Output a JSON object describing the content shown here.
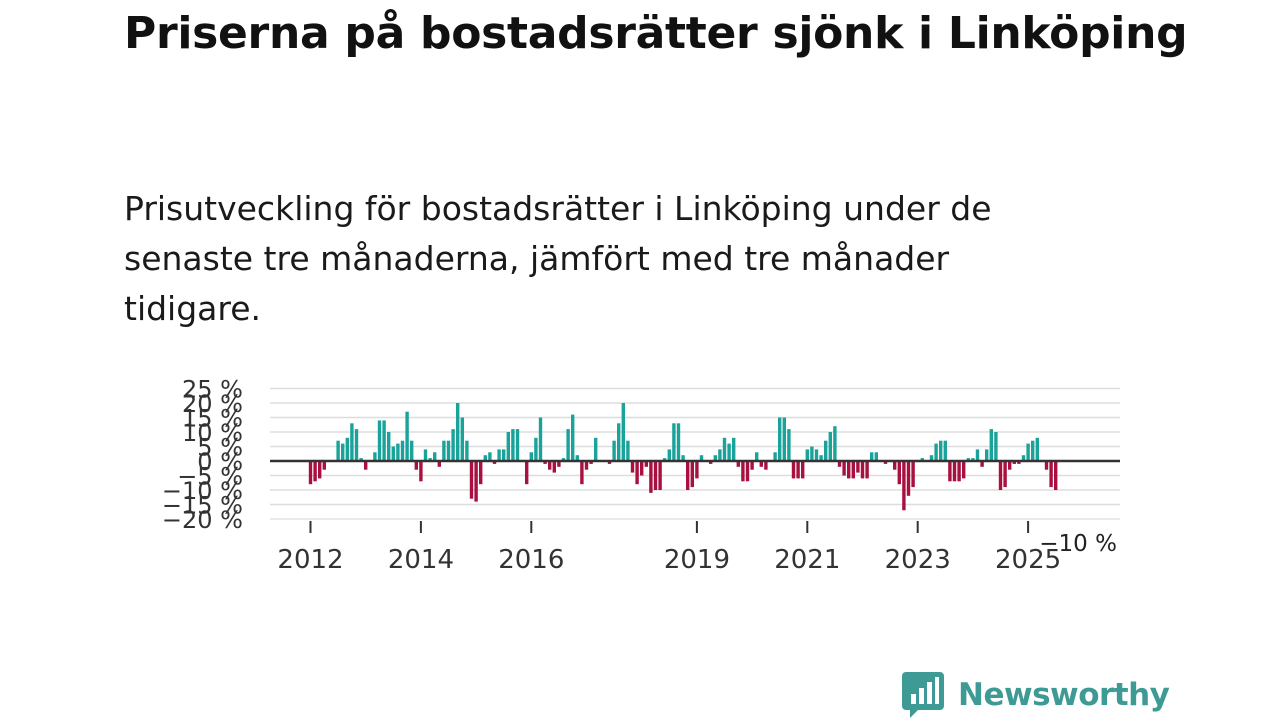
{
  "header": {
    "title": "Priserna på bostadsrätter sjönk i Linköping",
    "subtitle": "Prisutveckling för bostadsrätter i Linköping under de senaste tre månaderna, jämfört med tre månader tidigare."
  },
  "colors": {
    "positive": "#1aa39a",
    "negative": "#a8103f",
    "zero_line": "#333333",
    "grid": "#dddddd",
    "brand": "#3d9a94"
  },
  "chart_data": {
    "type": "bar",
    "title": "Priserna på bostadsrätter sjönk i Linköping",
    "xlabel": "",
    "ylabel": "",
    "ylim": [
      -20,
      25
    ],
    "y_ticks": [
      {
        "value": 25,
        "label": "25 %"
      },
      {
        "value": 20,
        "label": "20 %"
      },
      {
        "value": 15,
        "label": "15 %"
      },
      {
        "value": 10,
        "label": "10 %"
      },
      {
        "value": 5,
        "label": "5 %"
      },
      {
        "value": 0,
        "label": "0 %"
      },
      {
        "value": -5,
        "label": "−5 %"
      },
      {
        "value": -10,
        "label": "−10 %"
      },
      {
        "value": -15,
        "label": "−15 %"
      },
      {
        "value": -20,
        "label": "−20 %"
      }
    ],
    "x_ticks": [
      {
        "year": 2012,
        "label": "2012"
      },
      {
        "year": 2014,
        "label": "2014"
      },
      {
        "year": 2016,
        "label": "2016"
      },
      {
        "year": 2019,
        "label": "2019"
      },
      {
        "year": 2021,
        "label": "2021"
      },
      {
        "year": 2023,
        "label": "2023"
      },
      {
        "year": 2025,
        "label": "2025"
      }
    ],
    "start": "2012-01",
    "frequency": "monthly",
    "values": [
      -8,
      -7,
      -6,
      -3,
      0,
      0,
      7,
      6,
      8,
      13,
      11,
      1,
      -3,
      0,
      3,
      14,
      14,
      10,
      5,
      6,
      7,
      17,
      7,
      -3,
      -7,
      4,
      1,
      3,
      -2,
      7,
      7,
      11,
      20,
      15,
      7,
      -13,
      -14,
      -8,
      2,
      3,
      -1,
      4,
      4,
      10,
      11,
      11,
      0,
      -8,
      3,
      8,
      15,
      -1,
      -3,
      -4,
      -2,
      1,
      11,
      16,
      2,
      -8,
      -3,
      -1,
      8,
      0,
      0,
      -1,
      7,
      13,
      20,
      7,
      -4,
      -8,
      -5,
      -2,
      -11,
      -10,
      -10,
      1,
      4,
      13,
      13,
      2,
      -10,
      -9,
      -6,
      2,
      0,
      -1,
      2,
      4,
      8,
      6,
      8,
      -2,
      -7,
      -7,
      -3,
      3,
      -2,
      -3,
      0,
      3,
      15,
      15,
      11,
      -6,
      -6,
      -6,
      4,
      5,
      4,
      2,
      7,
      10,
      12,
      -2,
      -5,
      -6,
      -6,
      -4,
      -6,
      -6,
      3,
      3,
      0,
      -1,
      0,
      -3,
      -8,
      -17,
      -12,
      -9,
      0,
      1,
      0,
      2,
      6,
      7,
      7,
      -7,
      -7,
      -7,
      -6,
      1,
      1,
      4,
      -2,
      4,
      11,
      10,
      -10,
      -9,
      -3,
      -1,
      -1,
      2,
      6,
      7,
      8,
      0,
      -3,
      -9,
      -10
    ],
    "annotation": {
      "label": "−10 %",
      "value": -10
    }
  },
  "footer": {
    "brand": "Newsworthy",
    "logo_icon": "bar-chart-speech-bubble-icon"
  }
}
